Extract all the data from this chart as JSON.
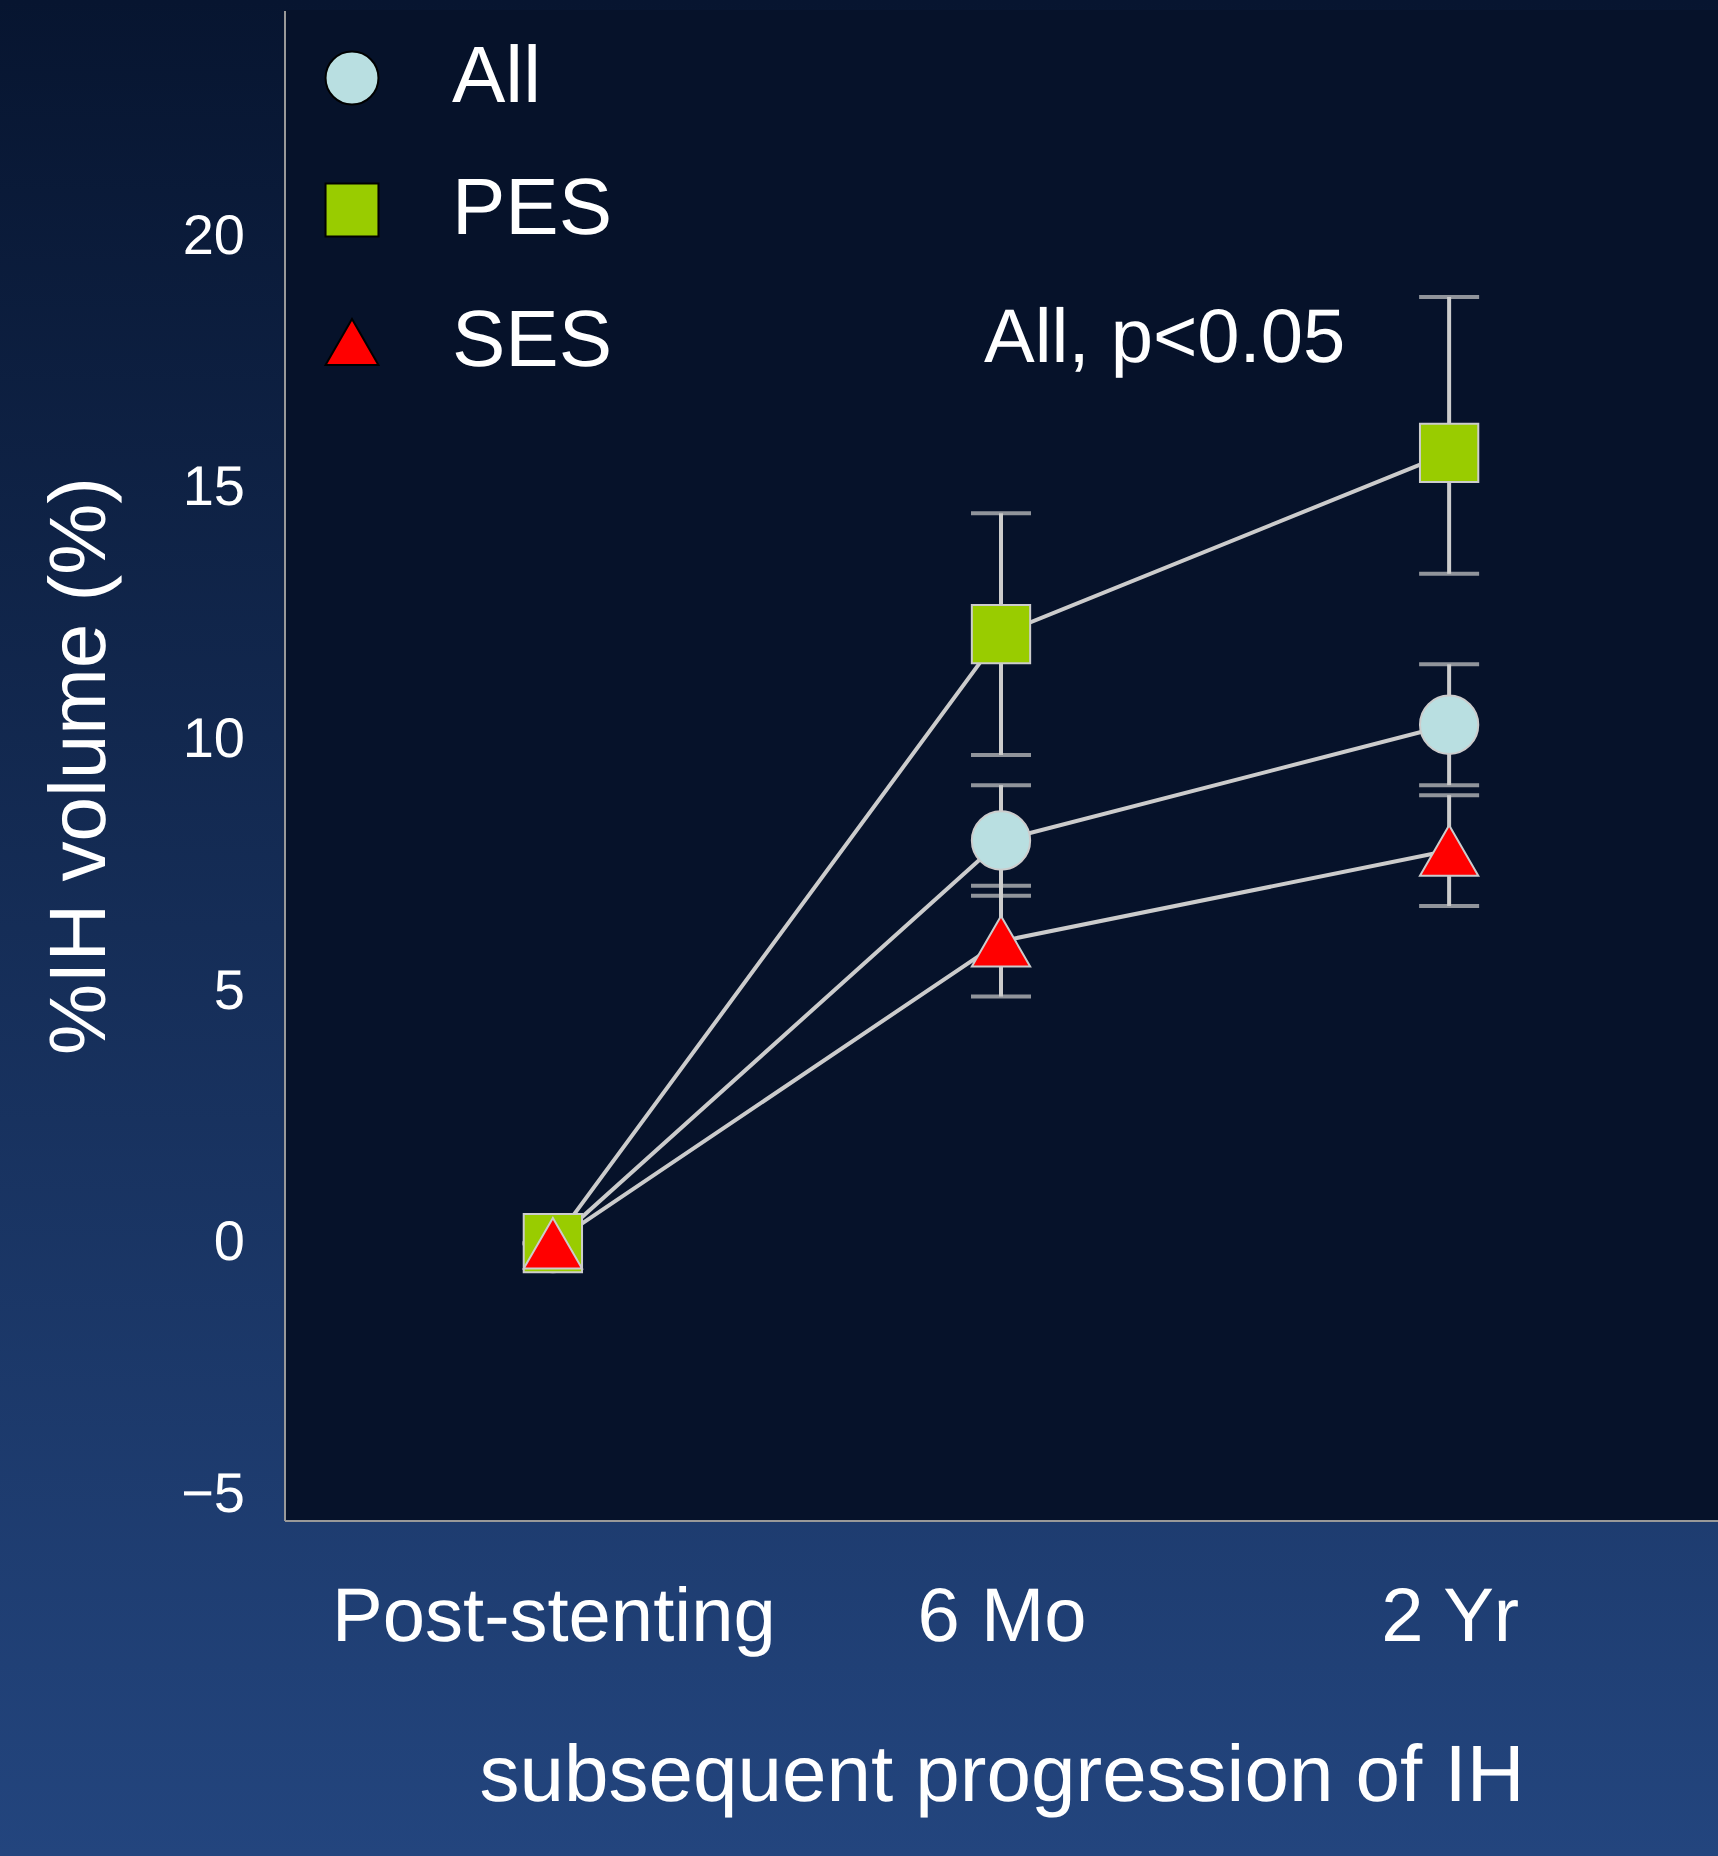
{
  "chart_data": {
    "type": "line",
    "xlabel": "subsequent progression of IH",
    "ylabel": "%IH volume (%)",
    "categories": [
      "Post-stenting",
      "6 Mo",
      "2 Yr"
    ],
    "series": [
      {
        "name": "All",
        "color": "#b9dfe1",
        "marker": "circle",
        "values": [
          0,
          8.0,
          10.3
        ],
        "errors": [
          0,
          1.1,
          1.2
        ]
      },
      {
        "name": "PES",
        "color": "#99cc00",
        "marker": "square",
        "values": [
          0,
          12.1,
          15.7
        ],
        "errors": [
          0,
          2.4,
          [
            13.3,
            18.8
          ]
        ]
      },
      {
        "name": "SES",
        "color": "#ff0000",
        "marker": "triangle",
        "values": [
          0,
          6.0,
          7.8
        ],
        "errors": [
          0,
          1.1,
          1.1
        ]
      }
    ],
    "annotations": [
      "All, p<0.05"
    ],
    "ylim": [
      -5.5,
      24.5
    ],
    "yticks": [
      -5,
      0,
      5,
      10,
      15,
      20
    ],
    "grid": false,
    "legend": "top left",
    "line_style": "solid"
  }
}
